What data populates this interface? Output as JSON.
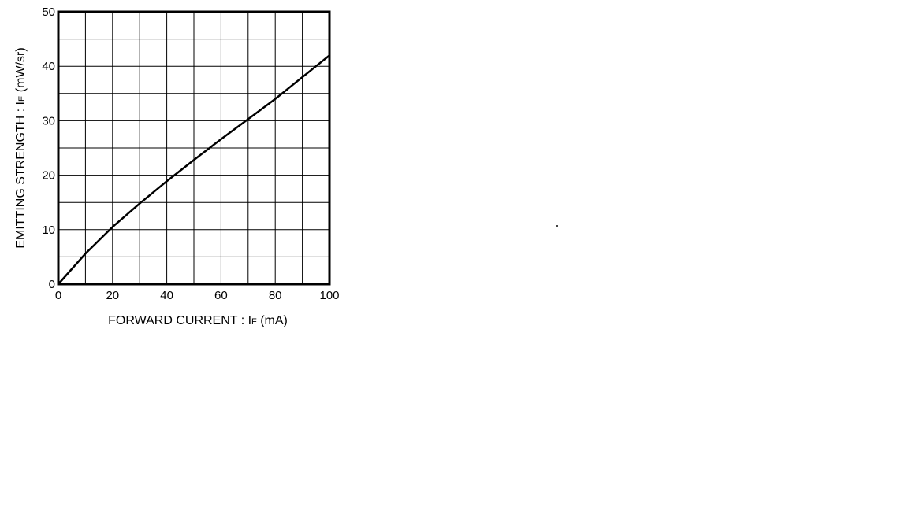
{
  "chart_data": {
    "type": "line",
    "xlabel_parts": {
      "prefix": "FORWARD  CURRENT : I",
      "sub": "F",
      "suffix": " (mA)"
    },
    "ylabel_parts": {
      "prefix": "EMITTING  STRENGTH : I",
      "sub": "E",
      "suffix": " (mW/sr)"
    },
    "xlim": [
      0,
      100
    ],
    "ylim": [
      0,
      50
    ],
    "x_ticks": [
      0,
      20,
      40,
      60,
      80,
      100
    ],
    "y_ticks": [
      0,
      10,
      20,
      30,
      40,
      50
    ],
    "x_grid_step": 10,
    "y_grid_step": 5,
    "grid": true,
    "series": [
      {
        "x": [
          0,
          5,
          10,
          20,
          30,
          40,
          50,
          60,
          70,
          80,
          90,
          100
        ],
        "y": [
          0,
          2.8,
          5.6,
          10.5,
          14.8,
          18.9,
          22.8,
          26.6,
          30.3,
          34.0,
          38.0,
          42.0
        ]
      }
    ]
  }
}
